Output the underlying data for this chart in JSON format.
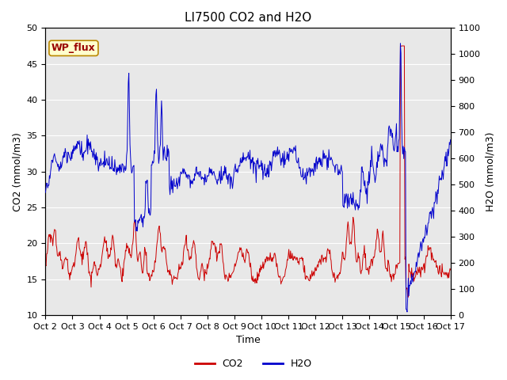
{
  "title": "LI7500 CO2 and H2O",
  "xlabel": "Time",
  "ylabel_left": "CO2 (mmol/m3)",
  "ylabel_right": "H2O (mmol/m3)",
  "ylim_left": [
    10,
    50
  ],
  "ylim_right": [
    0,
    1100
  ],
  "yticks_left": [
    10,
    15,
    20,
    25,
    30,
    35,
    40,
    45,
    50
  ],
  "yticks_right": [
    0,
    100,
    200,
    300,
    400,
    500,
    600,
    700,
    800,
    900,
    1000,
    1100
  ],
  "xtick_labels": [
    "Oct 2",
    "Oct 3",
    "Oct 4",
    "Oct 5",
    "Oct 6",
    "Oct 7",
    "Oct 8",
    "Oct 9",
    "Oct 10",
    "Oct 11",
    "Oct 12",
    "Oct 13",
    "Oct 14",
    "Oct 15",
    "Oct 16",
    "Oct 17"
  ],
  "co2_color": "#cc0000",
  "h2o_color": "#0000cc",
  "background_color": "#e8e8e8",
  "legend_box_facecolor": "#ffffcc",
  "legend_box_edgecolor": "#bb8800",
  "annotation_text": "WP_flux",
  "annotation_color": "#990000",
  "grid_color": "#ffffff",
  "title_fontsize": 11,
  "axis_label_fontsize": 9,
  "tick_fontsize": 8,
  "legend_fontsize": 9,
  "annotation_fontsize": 9
}
